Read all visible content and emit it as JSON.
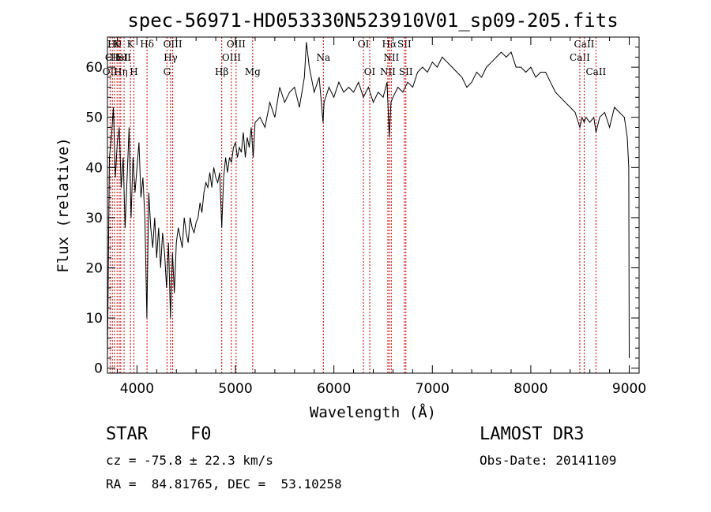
{
  "chart_data": {
    "type": "line",
    "title": "spec-56971-HD053330N523910V01_sp09-205.fits",
    "xlabel": "Wavelength (Å)",
    "ylabel": "Flux (relative)",
    "xlim": [
      3700,
      9100
    ],
    "ylim": [
      -1,
      66
    ],
    "xticks": [
      4000,
      5000,
      6000,
      7000,
      8000,
      9000
    ],
    "yticks": [
      0,
      10,
      20,
      30,
      40,
      50,
      60
    ],
    "grid": false,
    "series": [
      {
        "color": "#000000",
        "points": [
          [
            3700,
            2
          ],
          [
            3720,
            42
          ],
          [
            3740,
            46
          ],
          [
            3760,
            52
          ],
          [
            3780,
            38
          ],
          [
            3800,
            45
          ],
          [
            3820,
            48
          ],
          [
            3840,
            36
          ],
          [
            3860,
            42
          ],
          [
            3880,
            28
          ],
          [
            3900,
            38
          ],
          [
            3920,
            48
          ],
          [
            3940,
            30
          ],
          [
            3960,
            42
          ],
          [
            3980,
            35
          ],
          [
            4000,
            40
          ],
          [
            4020,
            45
          ],
          [
            4040,
            34
          ],
          [
            4060,
            38
          ],
          [
            4080,
            30
          ],
          [
            4100,
            10
          ],
          [
            4120,
            35
          ],
          [
            4140,
            28
          ],
          [
            4160,
            24
          ],
          [
            4180,
            30
          ],
          [
            4200,
            22
          ],
          [
            4220,
            28
          ],
          [
            4240,
            20
          ],
          [
            4260,
            27
          ],
          [
            4280,
            23
          ],
          [
            4300,
            16
          ],
          [
            4320,
            25
          ],
          [
            4340,
            10
          ],
          [
            4360,
            23
          ],
          [
            4380,
            15
          ],
          [
            4400,
            25
          ],
          [
            4420,
            28
          ],
          [
            4440,
            26
          ],
          [
            4460,
            24
          ],
          [
            4480,
            30
          ],
          [
            4500,
            27
          ],
          [
            4520,
            25
          ],
          [
            4540,
            30
          ],
          [
            4560,
            28
          ],
          [
            4580,
            27
          ],
          [
            4600,
            29
          ],
          [
            4620,
            30
          ],
          [
            4640,
            33
          ],
          [
            4660,
            31
          ],
          [
            4680,
            35
          ],
          [
            4700,
            37
          ],
          [
            4720,
            36
          ],
          [
            4740,
            39
          ],
          [
            4760,
            36
          ],
          [
            4780,
            40
          ],
          [
            4800,
            38
          ],
          [
            4820,
            37
          ],
          [
            4840,
            39
          ],
          [
            4861,
            28
          ],
          [
            4880,
            38
          ],
          [
            4900,
            42
          ],
          [
            4920,
            39
          ],
          [
            4940,
            42
          ],
          [
            4960,
            41
          ],
          [
            4980,
            44
          ],
          [
            5000,
            45
          ],
          [
            5020,
            42
          ],
          [
            5040,
            44
          ],
          [
            5060,
            43
          ],
          [
            5080,
            47
          ],
          [
            5100,
            42
          ],
          [
            5120,
            46
          ],
          [
            5140,
            44
          ],
          [
            5160,
            48
          ],
          [
            5180,
            42
          ],
          [
            5200,
            49
          ],
          [
            5250,
            50
          ],
          [
            5300,
            48
          ],
          [
            5350,
            53
          ],
          [
            5400,
            50
          ],
          [
            5450,
            56
          ],
          [
            5500,
            53
          ],
          [
            5550,
            55
          ],
          [
            5600,
            56
          ],
          [
            5650,
            52
          ],
          [
            5700,
            58
          ],
          [
            5720,
            65
          ],
          [
            5750,
            60
          ],
          [
            5800,
            55
          ],
          [
            5850,
            58
          ],
          [
            5890,
            49
          ],
          [
            5900,
            53
          ],
          [
            5950,
            56
          ],
          [
            6000,
            54
          ],
          [
            6050,
            57
          ],
          [
            6100,
            55
          ],
          [
            6150,
            56
          ],
          [
            6200,
            55
          ],
          [
            6250,
            57
          ],
          [
            6300,
            54
          ],
          [
            6350,
            56
          ],
          [
            6400,
            53
          ],
          [
            6450,
            55
          ],
          [
            6500,
            54
          ],
          [
            6540,
            57
          ],
          [
            6563,
            46
          ],
          [
            6580,
            53
          ],
          [
            6600,
            54
          ],
          [
            6650,
            56
          ],
          [
            6700,
            55
          ],
          [
            6750,
            57
          ],
          [
            6800,
            56
          ],
          [
            6850,
            59
          ],
          [
            6900,
            60
          ],
          [
            6950,
            59
          ],
          [
            7000,
            61
          ],
          [
            7050,
            60
          ],
          [
            7100,
            62
          ],
          [
            7150,
            61
          ],
          [
            7200,
            60
          ],
          [
            7250,
            59
          ],
          [
            7300,
            58
          ],
          [
            7350,
            56
          ],
          [
            7400,
            57
          ],
          [
            7450,
            59
          ],
          [
            7500,
            58
          ],
          [
            7550,
            60
          ],
          [
            7600,
            61
          ],
          [
            7650,
            62
          ],
          [
            7700,
            63
          ],
          [
            7750,
            62
          ],
          [
            7800,
            63
          ],
          [
            7850,
            60
          ],
          [
            7900,
            60
          ],
          [
            7950,
            59
          ],
          [
            8000,
            60
          ],
          [
            8050,
            58
          ],
          [
            8100,
            59
          ],
          [
            8150,
            59
          ],
          [
            8200,
            57
          ],
          [
            8250,
            55
          ],
          [
            8300,
            54
          ],
          [
            8350,
            53
          ],
          [
            8400,
            52
          ],
          [
            8450,
            51
          ],
          [
            8498,
            48
          ],
          [
            8520,
            50
          ],
          [
            8542,
            49
          ],
          [
            8560,
            50
          ],
          [
            8600,
            49
          ],
          [
            8640,
            50
          ],
          [
            8662,
            47
          ],
          [
            8700,
            50
          ],
          [
            8750,
            51
          ],
          [
            8800,
            48
          ],
          [
            8850,
            52
          ],
          [
            8900,
            51
          ],
          [
            8950,
            50
          ],
          [
            8980,
            46
          ],
          [
            8995,
            40
          ],
          [
            9000,
            2
          ]
        ]
      }
    ],
    "line_markers": [
      {
        "wave": 3727,
        "label": "OII",
        "row": 3
      },
      {
        "wave": 3750,
        "label": "CII",
        "row": 2
      },
      {
        "wave": 3771,
        "label": "Hθ",
        "row": 1
      },
      {
        "wave": 3798,
        "label": "K",
        "row": 1
      },
      {
        "wave": 3820,
        "label": "HeI",
        "row": 2
      },
      {
        "wave": 3835,
        "label": "Hη",
        "row": 3
      },
      {
        "wave": 3869,
        "label": "SII",
        "row": 2
      },
      {
        "wave": 3934,
        "label": "K",
        "row": 1
      },
      {
        "wave": 3969,
        "label": "H",
        "row": 3
      },
      {
        "wave": 4102,
        "label": "Hδ",
        "row": 1
      },
      {
        "wave": 4305,
        "label": "G",
        "row": 3
      },
      {
        "wave": 4341,
        "label": "Hγ",
        "row": 2
      },
      {
        "wave": 4363,
        "label": "OIII",
        "row": 1
      },
      {
        "wave": 4861,
        "label": "Hβ",
        "row": 3
      },
      {
        "wave": 4959,
        "label": "OIII",
        "row": 2
      },
      {
        "wave": 5007,
        "label": "OIII",
        "row": 1
      },
      {
        "wave": 5175,
        "label": "Mg",
        "row": 3
      },
      {
        "wave": 5893,
        "label": "Na",
        "row": 2
      },
      {
        "wave": 6300,
        "label": "OI",
        "row": 1
      },
      {
        "wave": 6364,
        "label": "OI",
        "row": 3
      },
      {
        "wave": 6548,
        "label": "NII",
        "row": 3
      },
      {
        "wave": 6563,
        "label": "Hα",
        "row": 1
      },
      {
        "wave": 6583,
        "label": "NII",
        "row": 2
      },
      {
        "wave": 6716,
        "label": "SII",
        "row": 1
      },
      {
        "wave": 6731,
        "label": "SII",
        "row": 3
      },
      {
        "wave": 8498,
        "label": "CaII",
        "row": 2
      },
      {
        "wave": 8542,
        "label": "CaII",
        "row": 1
      },
      {
        "wave": 8662,
        "label": "CaII",
        "row": 3
      }
    ]
  },
  "info": {
    "object_class": "STAR",
    "subclass": "F0",
    "survey": "LAMOST DR3",
    "redshift": "cz = -75.8 ± 22.3 km/s",
    "obs_date": "Obs-Date: 20141109",
    "coords": "RA =  84.81765, DEC =  53.10258"
  }
}
